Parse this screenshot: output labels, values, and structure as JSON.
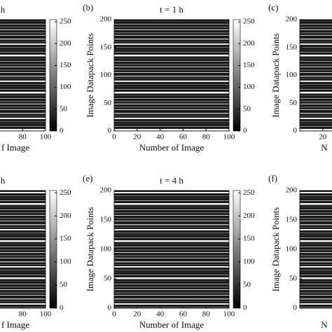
{
  "chart_data": [
    {
      "type": "heatmap",
      "title": "h",
      "xlabel": "f Image",
      "xlim": [
        0,
        100
      ],
      "xticks": [
        80,
        100
      ],
      "colorbar": {
        "lim": [
          0,
          255
        ],
        "ticks": [
          0,
          50,
          100,
          150,
          200,
          250
        ]
      }
    },
    {
      "type": "heatmap",
      "panel_label": "(b)",
      "title": "t = 1 h",
      "ylabel": "Image Datapack Points",
      "xlabel": "Number of Image",
      "xlim": [
        0,
        100
      ],
      "xticks": [
        0,
        20,
        40,
        60,
        80,
        100
      ],
      "ylim": [
        0,
        200
      ],
      "yticks": [
        0,
        50,
        100,
        150,
        200
      ],
      "colorbar": {
        "lim": [
          0,
          255
        ],
        "ticks": [
          0,
          50,
          100,
          150,
          200,
          250
        ]
      }
    },
    {
      "type": "heatmap",
      "panel_label": "(c)",
      "ylabel": "Image Datapack Points",
      "xlabel": "N",
      "xlim": [
        0,
        100
      ],
      "xticks": [
        20
      ],
      "ylim": [
        0,
        200
      ],
      "yticks": [
        0,
        50,
        100,
        150,
        200
      ]
    },
    {
      "type": "heatmap",
      "title": "h",
      "xlabel": "f Image",
      "xlim": [
        0,
        100
      ],
      "xticks": [
        80,
        100
      ],
      "colorbar": {
        "lim": [
          0,
          255
        ],
        "ticks": [
          0,
          50,
          100,
          150,
          200,
          250
        ]
      }
    },
    {
      "type": "heatmap",
      "panel_label": "(e)",
      "title": "t = 4 h",
      "ylabel": "Image Datapack Points",
      "xlabel": "Number of Image",
      "xlim": [
        0,
        100
      ],
      "xticks": [
        0,
        20,
        40,
        60,
        80,
        100
      ],
      "ylim": [
        0,
        200
      ],
      "yticks": [
        0,
        50,
        100,
        150,
        200
      ],
      "colorbar": {
        "lim": [
          0,
          255
        ],
        "ticks": [
          0,
          50,
          100,
          150,
          200,
          250
        ]
      }
    },
    {
      "type": "heatmap",
      "panel_label": "(f)",
      "ylabel": "Image Datapack Points",
      "xlabel": "N",
      "xlim": [
        0,
        100
      ],
      "ylim": [
        0,
        200
      ],
      "yticks": [
        0,
        50,
        100,
        150,
        200
      ]
    }
  ]
}
